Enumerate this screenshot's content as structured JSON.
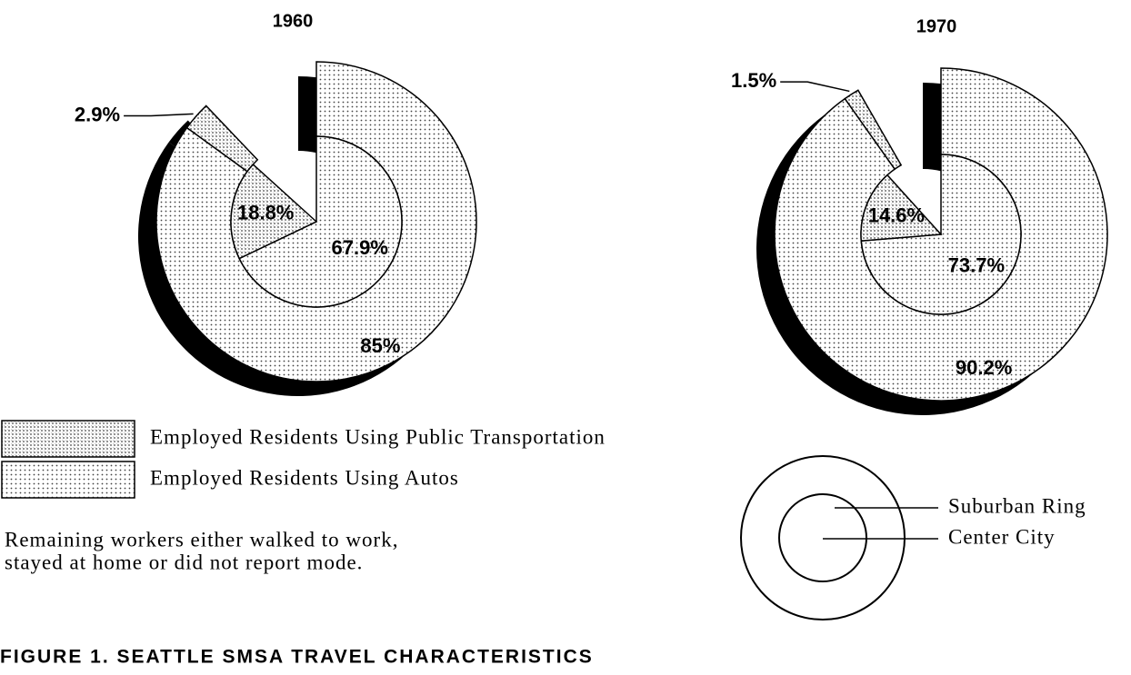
{
  "chart_data": [
    {
      "type": "pie",
      "title": "1960",
      "series": [
        {
          "values": [
            2.9,
            85
          ],
          "value_labels": [
            "2.9%",
            "85%"
          ]
        },
        {
          "values": [
            18.8,
            67.9
          ],
          "value_labels": [
            "18.8%",
            "67.9%"
          ]
        }
      ]
    },
    {
      "type": "pie",
      "title": "1970",
      "series": [
        {
          "values": [
            1.5,
            90.2
          ],
          "value_labels": [
            "1.5%",
            "90.2%"
          ]
        },
        {
          "values": [
            14.6,
            73.7
          ],
          "value_labels": [
            "14.6%",
            "73.7%"
          ]
        }
      ]
    }
  ],
  "legend": {
    "items": [
      "Employed Residents Using Public Transportation",
      "Employed Residents Using Autos"
    ],
    "colors": [
      "#888888",
      "#444444"
    ]
  },
  "note": [
    "Remaining workers either walked to work,",
    "stayed at home or did not report mode."
  ],
  "key": {
    "outer": "Suburban Ring",
    "inner": "Center City"
  },
  "caption": "FIGURE 1. SEATTLE SMSA TRAVEL CHARACTERISTICS"
}
